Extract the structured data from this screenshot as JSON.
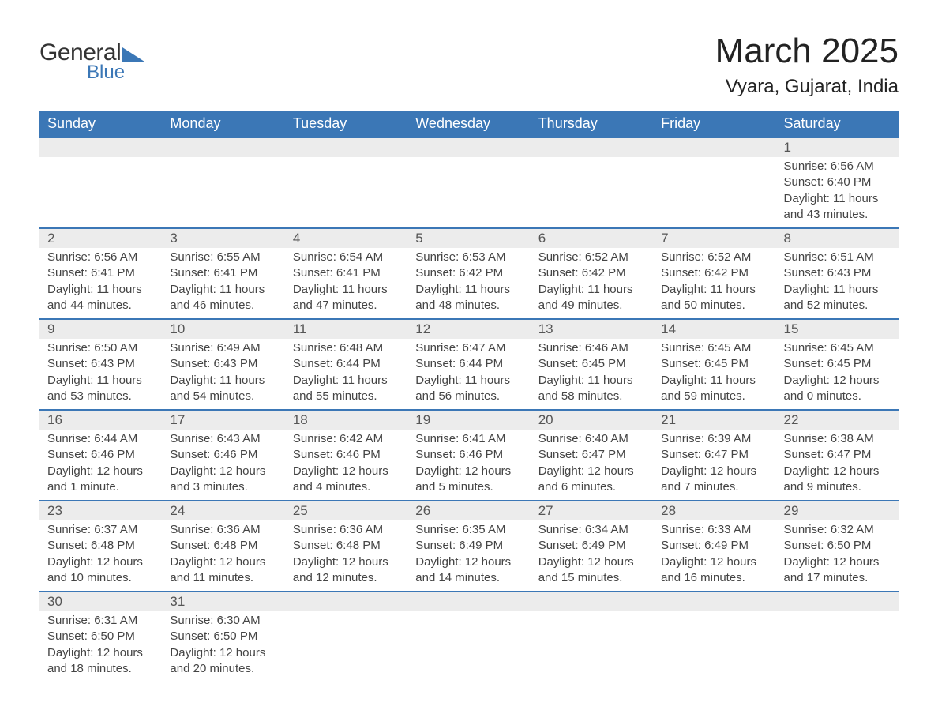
{
  "brand": {
    "word1": "General",
    "word2": "Blue",
    "accent_color": "#3b77b6"
  },
  "title": "March 2025",
  "location": "Vyara, Gujarat, India",
  "colors": {
    "header_bg": "#3b77b6",
    "header_text": "#ffffff",
    "daynum_bg": "#ececec",
    "text": "#444444",
    "row_border": "#3b77b6",
    "page_bg": "#ffffff"
  },
  "typography": {
    "title_fontsize": 44,
    "location_fontsize": 24,
    "header_fontsize": 18,
    "daynum_fontsize": 17,
    "body_fontsize": 15
  },
  "weekdays": [
    "Sunday",
    "Monday",
    "Tuesday",
    "Wednesday",
    "Thursday",
    "Friday",
    "Saturday"
  ],
  "labels": {
    "sunrise_prefix": "Sunrise: ",
    "sunset_prefix": "Sunset: ",
    "daylight_prefix": "Daylight: "
  },
  "weeks": [
    [
      null,
      null,
      null,
      null,
      null,
      null,
      {
        "n": "1",
        "sunrise": "6:56 AM",
        "sunset": "6:40 PM",
        "daylight": "11 hours and 43 minutes."
      }
    ],
    [
      {
        "n": "2",
        "sunrise": "6:56 AM",
        "sunset": "6:41 PM",
        "daylight": "11 hours and 44 minutes."
      },
      {
        "n": "3",
        "sunrise": "6:55 AM",
        "sunset": "6:41 PM",
        "daylight": "11 hours and 46 minutes."
      },
      {
        "n": "4",
        "sunrise": "6:54 AM",
        "sunset": "6:41 PM",
        "daylight": "11 hours and 47 minutes."
      },
      {
        "n": "5",
        "sunrise": "6:53 AM",
        "sunset": "6:42 PM",
        "daylight": "11 hours and 48 minutes."
      },
      {
        "n": "6",
        "sunrise": "6:52 AM",
        "sunset": "6:42 PM",
        "daylight": "11 hours and 49 minutes."
      },
      {
        "n": "7",
        "sunrise": "6:52 AM",
        "sunset": "6:42 PM",
        "daylight": "11 hours and 50 minutes."
      },
      {
        "n": "8",
        "sunrise": "6:51 AM",
        "sunset": "6:43 PM",
        "daylight": "11 hours and 52 minutes."
      }
    ],
    [
      {
        "n": "9",
        "sunrise": "6:50 AM",
        "sunset": "6:43 PM",
        "daylight": "11 hours and 53 minutes."
      },
      {
        "n": "10",
        "sunrise": "6:49 AM",
        "sunset": "6:43 PM",
        "daylight": "11 hours and 54 minutes."
      },
      {
        "n": "11",
        "sunrise": "6:48 AM",
        "sunset": "6:44 PM",
        "daylight": "11 hours and 55 minutes."
      },
      {
        "n": "12",
        "sunrise": "6:47 AM",
        "sunset": "6:44 PM",
        "daylight": "11 hours and 56 minutes."
      },
      {
        "n": "13",
        "sunrise": "6:46 AM",
        "sunset": "6:45 PM",
        "daylight": "11 hours and 58 minutes."
      },
      {
        "n": "14",
        "sunrise": "6:45 AM",
        "sunset": "6:45 PM",
        "daylight": "11 hours and 59 minutes."
      },
      {
        "n": "15",
        "sunrise": "6:45 AM",
        "sunset": "6:45 PM",
        "daylight": "12 hours and 0 minutes."
      }
    ],
    [
      {
        "n": "16",
        "sunrise": "6:44 AM",
        "sunset": "6:46 PM",
        "daylight": "12 hours and 1 minute."
      },
      {
        "n": "17",
        "sunrise": "6:43 AM",
        "sunset": "6:46 PM",
        "daylight": "12 hours and 3 minutes."
      },
      {
        "n": "18",
        "sunrise": "6:42 AM",
        "sunset": "6:46 PM",
        "daylight": "12 hours and 4 minutes."
      },
      {
        "n": "19",
        "sunrise": "6:41 AM",
        "sunset": "6:46 PM",
        "daylight": "12 hours and 5 minutes."
      },
      {
        "n": "20",
        "sunrise": "6:40 AM",
        "sunset": "6:47 PM",
        "daylight": "12 hours and 6 minutes."
      },
      {
        "n": "21",
        "sunrise": "6:39 AM",
        "sunset": "6:47 PM",
        "daylight": "12 hours and 7 minutes."
      },
      {
        "n": "22",
        "sunrise": "6:38 AM",
        "sunset": "6:47 PM",
        "daylight": "12 hours and 9 minutes."
      }
    ],
    [
      {
        "n": "23",
        "sunrise": "6:37 AM",
        "sunset": "6:48 PM",
        "daylight": "12 hours and 10 minutes."
      },
      {
        "n": "24",
        "sunrise": "6:36 AM",
        "sunset": "6:48 PM",
        "daylight": "12 hours and 11 minutes."
      },
      {
        "n": "25",
        "sunrise": "6:36 AM",
        "sunset": "6:48 PM",
        "daylight": "12 hours and 12 minutes."
      },
      {
        "n": "26",
        "sunrise": "6:35 AM",
        "sunset": "6:49 PM",
        "daylight": "12 hours and 14 minutes."
      },
      {
        "n": "27",
        "sunrise": "6:34 AM",
        "sunset": "6:49 PM",
        "daylight": "12 hours and 15 minutes."
      },
      {
        "n": "28",
        "sunrise": "6:33 AM",
        "sunset": "6:49 PM",
        "daylight": "12 hours and 16 minutes."
      },
      {
        "n": "29",
        "sunrise": "6:32 AM",
        "sunset": "6:50 PM",
        "daylight": "12 hours and 17 minutes."
      }
    ],
    [
      {
        "n": "30",
        "sunrise": "6:31 AM",
        "sunset": "6:50 PM",
        "daylight": "12 hours and 18 minutes."
      },
      {
        "n": "31",
        "sunrise": "6:30 AM",
        "sunset": "6:50 PM",
        "daylight": "12 hours and 20 minutes."
      },
      null,
      null,
      null,
      null,
      null
    ]
  ]
}
